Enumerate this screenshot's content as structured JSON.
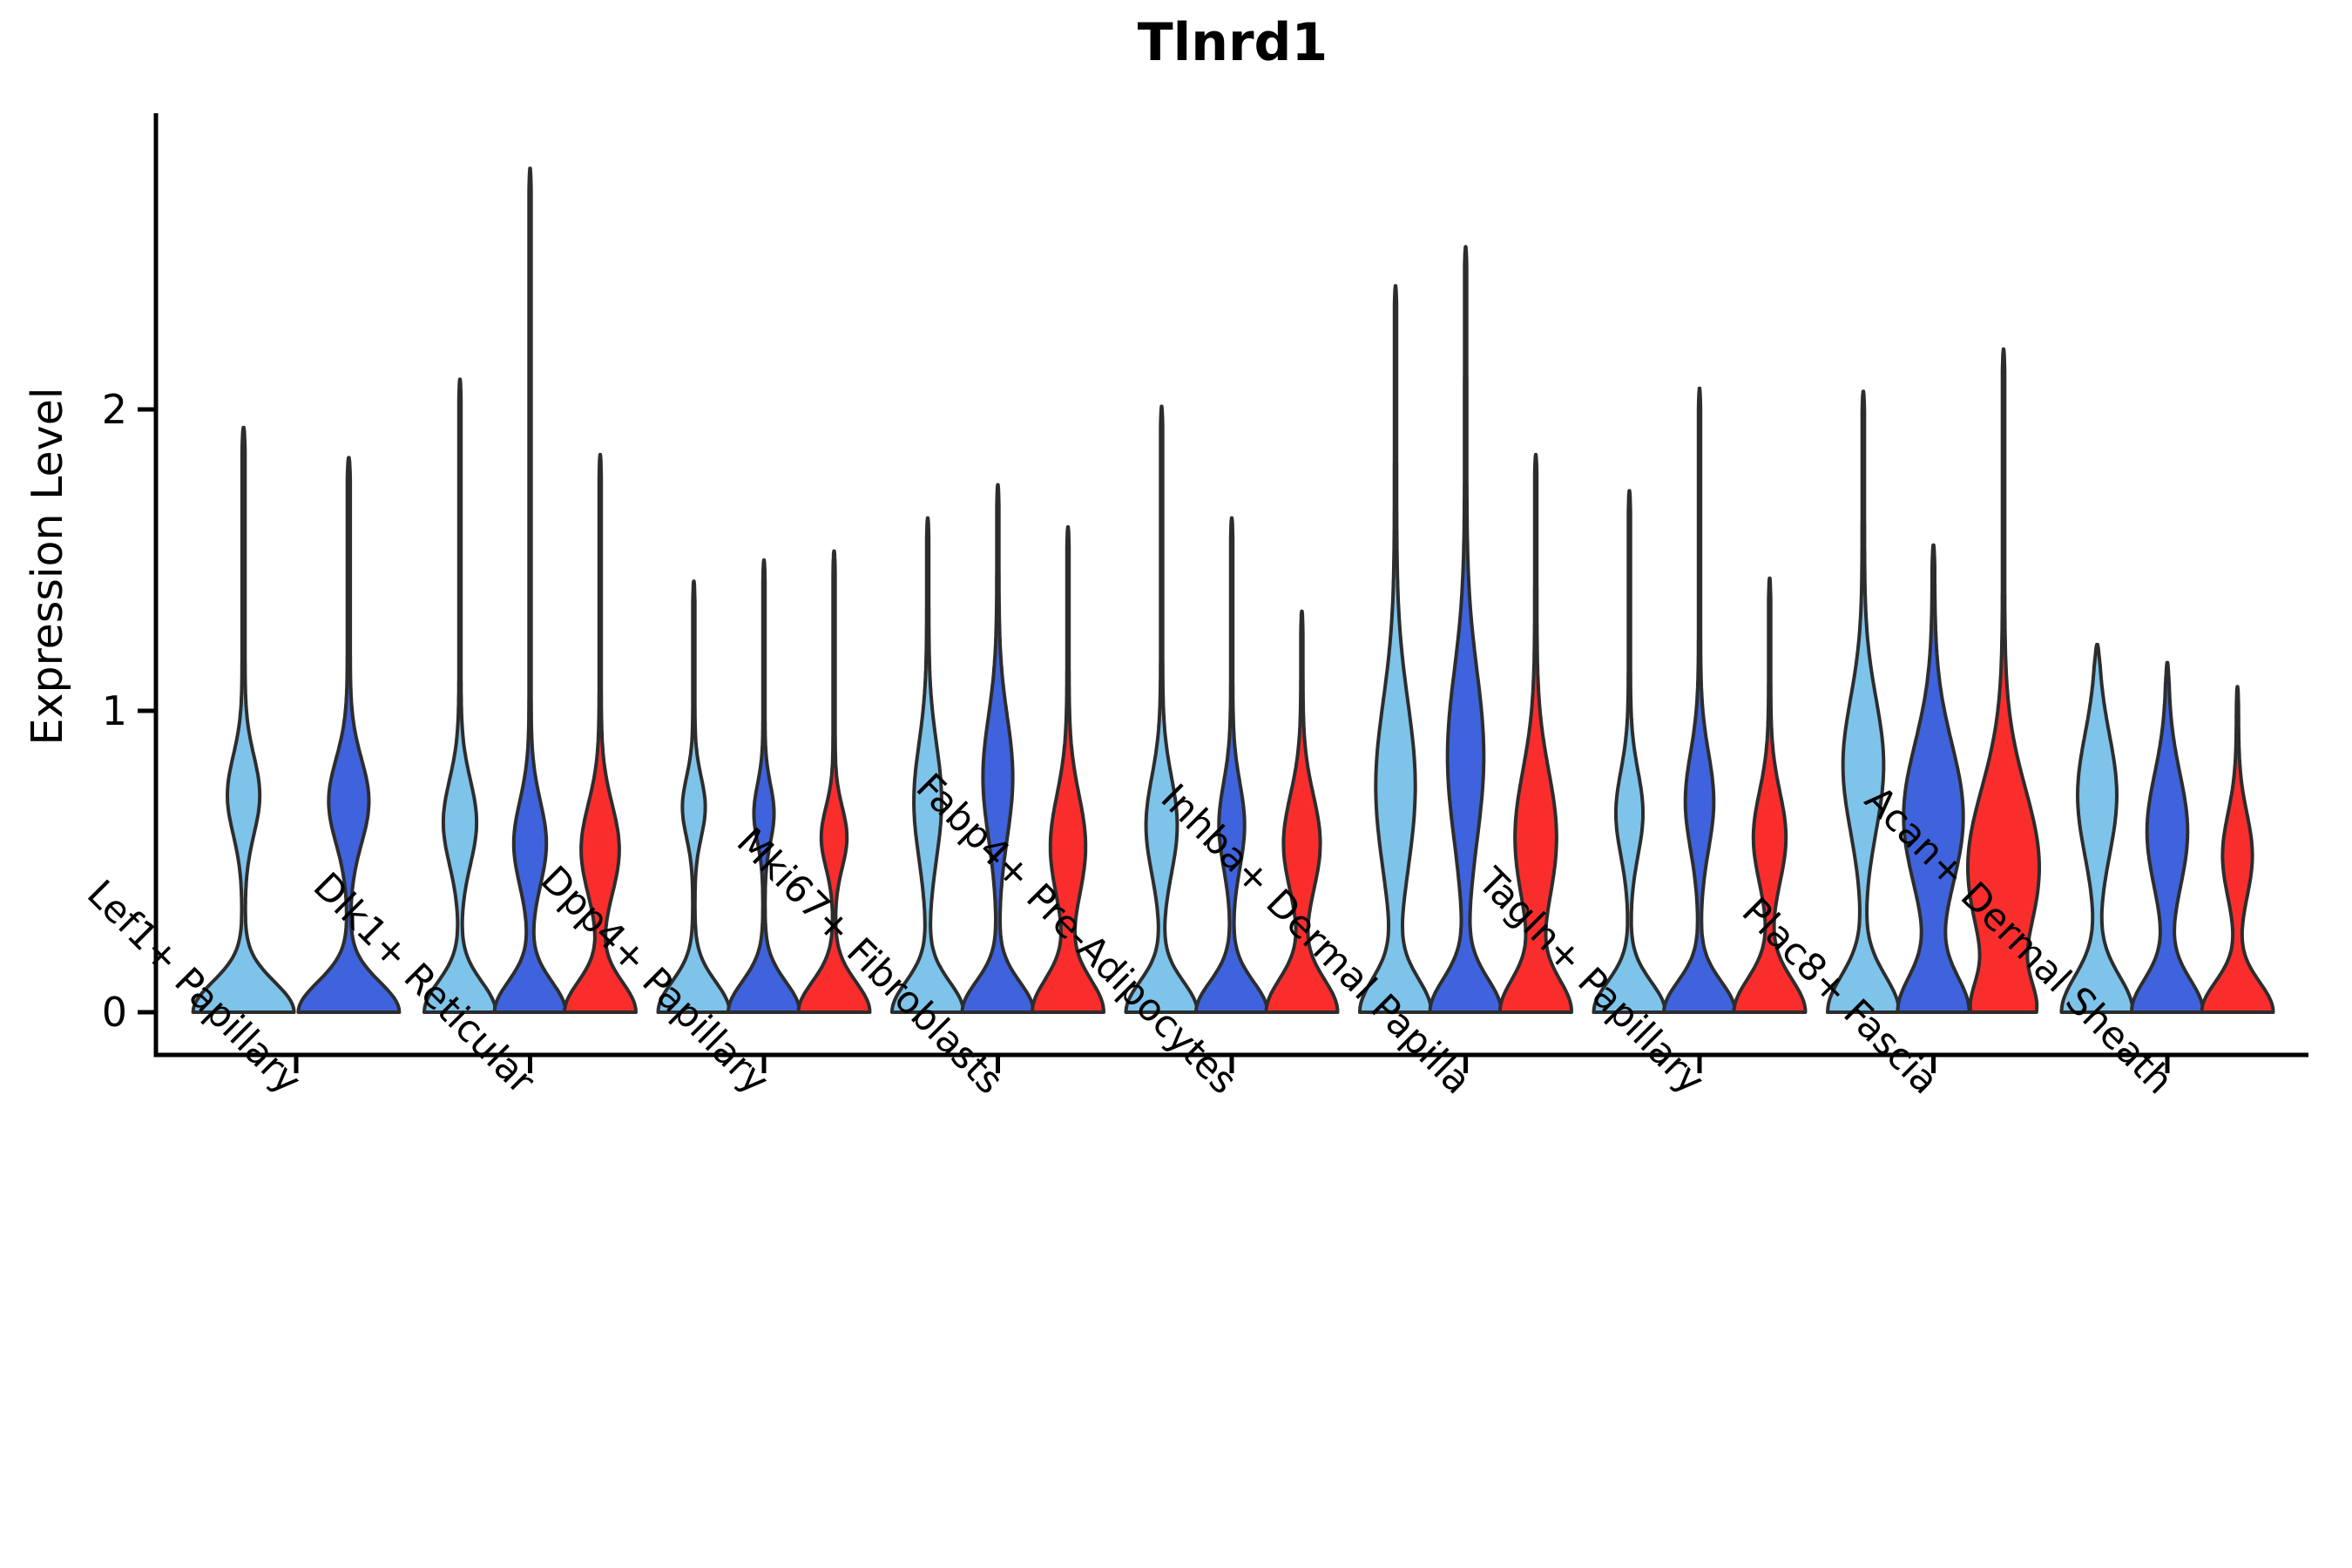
{
  "title": "Tlnrd1",
  "chart_data": {
    "type": "violin",
    "title": "Tlnrd1",
    "ylabel": "Expression Level",
    "xlabel": "",
    "y_ticks": [
      "0",
      "1",
      "2"
    ],
    "ylim": [
      -0.14,
      2.98
    ],
    "grid": false,
    "legend_position": "none",
    "split_series_colors": [
      "#7EC3EA",
      "#3E63DC",
      "#FA2D2D"
    ],
    "outline_color": "#2D2D2D",
    "axis_color": "#000000",
    "categories": [
      "Lef1+ Papillary",
      "Dlk1+ Reticular",
      "Dpp4+ Papillary",
      "Mki67+ Fibroblasts",
      "Fabp4+ Pre-Adipocytes",
      "Inhba+ Dermal Papilla",
      "Tagln+ Papillary",
      "Plac8+ Fascia",
      "Acan+ Dermal Sheath"
    ],
    "groups": [
      {
        "category": "Lef1+ Papillary",
        "violins": [
          {
            "series": 0,
            "max_expression": 1.94,
            "min_expression": 0,
            "base_weight": 1.0,
            "base_sigma": 0.1,
            "peak_value": 0.72,
            "peak_weight": 0.3,
            "peak_sigma": 0.13
          },
          {
            "series": 1,
            "max_expression": 1.84,
            "min_expression": 0,
            "base_weight": 1.0,
            "base_sigma": 0.1,
            "peak_value": 0.7,
            "peak_weight": 0.38,
            "peak_sigma": 0.14
          }
        ]
      },
      {
        "category": "Dlk1+ Reticular",
        "violins": [
          {
            "series": 0,
            "max_expression": 2.1,
            "min_expression": 0,
            "base_weight": 1.0,
            "base_sigma": 0.1,
            "peak_value": 0.63,
            "peak_weight": 0.45,
            "peak_sigma": 0.14
          },
          {
            "series": 1,
            "max_expression": 2.8,
            "min_expression": 0,
            "base_weight": 1.0,
            "base_sigma": 0.1,
            "peak_value": 0.56,
            "peak_weight": 0.44,
            "peak_sigma": 0.14
          },
          {
            "series": 2,
            "max_expression": 1.85,
            "min_expression": 0,
            "base_weight": 1.0,
            "base_sigma": 0.1,
            "peak_value": 0.54,
            "peak_weight": 0.52,
            "peak_sigma": 0.15
          }
        ]
      },
      {
        "category": "Dpp4+ Papillary",
        "violins": [
          {
            "series": 0,
            "max_expression": 1.43,
            "min_expression": 0,
            "base_weight": 1.0,
            "base_sigma": 0.1,
            "peak_value": 0.68,
            "peak_weight": 0.3,
            "peak_sigma": 0.1
          },
          {
            "series": 1,
            "max_expression": 1.5,
            "min_expression": 0,
            "base_weight": 1.0,
            "base_sigma": 0.1,
            "peak_value": 0.66,
            "peak_weight": 0.26,
            "peak_sigma": 0.095
          },
          {
            "series": 2,
            "max_expression": 1.53,
            "min_expression": 0,
            "base_weight": 1.0,
            "base_sigma": 0.1,
            "peak_value": 0.58,
            "peak_weight": 0.34,
            "peak_sigma": 0.1
          }
        ]
      },
      {
        "category": "Mki67+ Fibroblasts",
        "violins": [
          {
            "series": 0,
            "max_expression": 1.64,
            "min_expression": 0,
            "base_weight": 1.0,
            "base_sigma": 0.1,
            "peak_value": 0.7,
            "peak_weight": 0.37,
            "peak_sigma": 0.19
          },
          {
            "series": 1,
            "max_expression": 1.75,
            "min_expression": 0,
            "base_weight": 1.0,
            "base_sigma": 0.1,
            "peak_value": 0.78,
            "peak_weight": 0.4,
            "peak_sigma": 0.2
          },
          {
            "series": 2,
            "max_expression": 1.61,
            "min_expression": 0,
            "base_weight": 1.0,
            "base_sigma": 0.11,
            "peak_value": 0.55,
            "peak_weight": 0.48,
            "peak_sigma": 0.17
          }
        ]
      },
      {
        "category": "Fabp4+ Pre-Adipocytes",
        "violins": [
          {
            "series": 0,
            "max_expression": 2.01,
            "min_expression": 0,
            "base_weight": 1.0,
            "base_sigma": 0.1,
            "peak_value": 0.62,
            "peak_weight": 0.42,
            "peak_sigma": 0.16
          },
          {
            "series": 1,
            "max_expression": 1.64,
            "min_expression": 0,
            "base_weight": 1.0,
            "base_sigma": 0.1,
            "peak_value": 0.62,
            "peak_weight": 0.34,
            "peak_sigma": 0.14
          },
          {
            "series": 2,
            "max_expression": 1.33,
            "min_expression": 0,
            "base_weight": 1.0,
            "base_sigma": 0.11,
            "peak_value": 0.56,
            "peak_weight": 0.5,
            "peak_sigma": 0.16
          }
        ]
      },
      {
        "category": "Inhba+ Dermal Papilla",
        "violins": [
          {
            "series": 0,
            "max_expression": 2.41,
            "min_expression": 0,
            "base_weight": 0.95,
            "base_sigma": 0.11,
            "peak_value": 0.75,
            "peak_weight": 0.52,
            "peak_sigma": 0.28
          },
          {
            "series": 1,
            "max_expression": 2.54,
            "min_expression": 0,
            "base_weight": 0.95,
            "base_sigma": 0.11,
            "peak_value": 0.85,
            "peak_weight": 0.47,
            "peak_sigma": 0.28
          },
          {
            "series": 2,
            "max_expression": 1.85,
            "min_expression": 0,
            "base_weight": 0.95,
            "base_sigma": 0.11,
            "peak_value": 0.58,
            "peak_weight": 0.55,
            "peak_sigma": 0.22
          }
        ]
      },
      {
        "category": "Tagln+ Papillary",
        "violins": [
          {
            "series": 0,
            "max_expression": 1.73,
            "min_expression": 0,
            "base_weight": 1.0,
            "base_sigma": 0.1,
            "peak_value": 0.66,
            "peak_weight": 0.36,
            "peak_sigma": 0.14
          },
          {
            "series": 1,
            "max_expression": 2.07,
            "min_expression": 0,
            "base_weight": 1.0,
            "base_sigma": 0.1,
            "peak_value": 0.7,
            "peak_weight": 0.38,
            "peak_sigma": 0.16
          },
          {
            "series": 2,
            "max_expression": 1.44,
            "min_expression": 0,
            "base_weight": 1.0,
            "base_sigma": 0.11,
            "peak_value": 0.58,
            "peak_weight": 0.44,
            "peak_sigma": 0.15
          }
        ]
      },
      {
        "category": "Plac8+ Fascia",
        "violins": [
          {
            "series": 0,
            "max_expression": 2.06,
            "min_expression": 0,
            "base_weight": 0.9,
            "base_sigma": 0.12,
            "peak_value": 0.82,
            "peak_weight": 0.5,
            "peak_sigma": 0.22
          },
          {
            "series": 1,
            "max_expression": 1.55,
            "min_expression": 0,
            "base_weight": 0.85,
            "base_sigma": 0.12,
            "peak_value": 0.65,
            "peak_weight": 0.72,
            "peak_sigma": 0.24
          },
          {
            "series": 2,
            "max_expression": 2.2,
            "min_expression": 0,
            "base_weight": 0.7,
            "base_sigma": 0.1,
            "peak_value": 0.48,
            "peak_weight": 0.95,
            "peak_sigma": 0.26
          }
        ]
      },
      {
        "category": "Acan+ Dermal Sheath",
        "violins": [
          {
            "series": 0,
            "max_expression": 1.22,
            "min_expression": 0,
            "base_weight": 0.9,
            "base_sigma": 0.12,
            "peak_value": 0.72,
            "peak_weight": 0.48,
            "peak_sigma": 0.2
          },
          {
            "series": 1,
            "max_expression": 1.16,
            "min_expression": 0,
            "base_weight": 0.9,
            "base_sigma": 0.11,
            "peak_value": 0.6,
            "peak_weight": 0.5,
            "peak_sigma": 0.19
          },
          {
            "series": 2,
            "max_expression": 1.08,
            "min_expression": 0,
            "base_weight": 1.0,
            "base_sigma": 0.1,
            "peak_value": 0.52,
            "peak_weight": 0.4,
            "peak_sigma": 0.14
          }
        ]
      }
    ]
  }
}
